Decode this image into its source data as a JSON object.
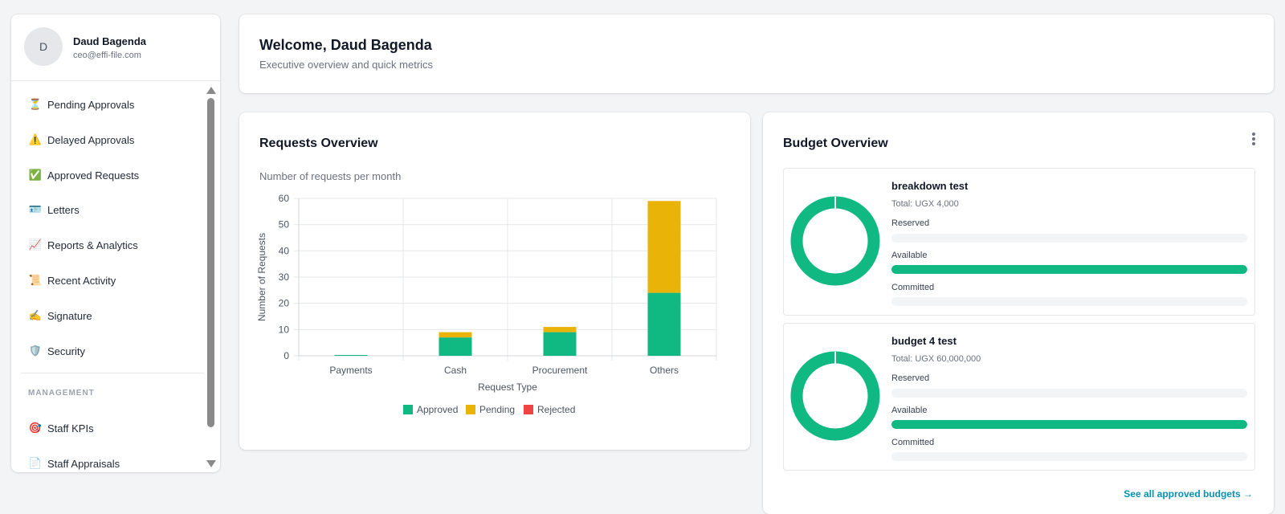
{
  "user": {
    "initial": "D",
    "name": "Daud Bagenda",
    "email": "ceo@effi-file.com"
  },
  "nav": {
    "items": [
      {
        "icon": "hourglass-icon",
        "glyph": "⏳",
        "label": "Pending Approvals"
      },
      {
        "icon": "warning-icon",
        "glyph": "⚠️",
        "label": "Delayed Approvals"
      },
      {
        "icon": "check-box-icon",
        "glyph": "✅",
        "label": "Approved Requests"
      },
      {
        "icon": "letter-icon",
        "glyph": "🪪",
        "label": "Letters"
      },
      {
        "icon": "chart-trend-icon",
        "glyph": "📈",
        "label": "Reports & Analytics"
      },
      {
        "icon": "scroll-icon",
        "glyph": "📜",
        "label": "Recent Activity"
      },
      {
        "icon": "writing-hand-icon",
        "glyph": "✍️",
        "label": "Signature"
      },
      {
        "icon": "shield-icon",
        "glyph": "🛡️",
        "label": "Security"
      }
    ],
    "section_label": "MANAGEMENT",
    "management_items": [
      {
        "icon": "target-icon",
        "glyph": "🎯",
        "label": "Staff KPIs"
      },
      {
        "icon": "clipboard-icon",
        "glyph": "📄",
        "label": "Staff Appraisals"
      }
    ]
  },
  "welcome": {
    "title": "Welcome, Daud Bagenda",
    "subtitle": "Executive overview and quick metrics"
  },
  "requests": {
    "title": "Requests Overview",
    "subtitle": "Number of requests per month"
  },
  "chart_data": {
    "type": "bar",
    "stacked": true,
    "categories": [
      "Payments",
      "Cash",
      "Procurement",
      "Others"
    ],
    "series": [
      {
        "name": "Approved",
        "color": "#10b981",
        "values": [
          0,
          7,
          9,
          24
        ]
      },
      {
        "name": "Pending",
        "color": "#eab308",
        "values": [
          0,
          2,
          2,
          35
        ]
      },
      {
        "name": "Rejected",
        "color": "#ef4444",
        "values": [
          0,
          0,
          0,
          0
        ]
      }
    ],
    "xlabel": "Request Type",
    "ylabel": "Number of Requests",
    "ylim": [
      0,
      60
    ],
    "yticks": [
      0,
      10,
      20,
      30,
      40,
      50,
      60
    ],
    "grid": true,
    "legend": "bottom"
  },
  "budget": {
    "title": "Budget Overview",
    "cards": [
      {
        "name": "breakdown test",
        "total": "Total: UGX 4,000",
        "reserved_label": "Reserved",
        "reserved": 0,
        "available_label": "Available",
        "available": 100,
        "committed_label": "Committed",
        "committed": 0,
        "color": "#10b981"
      },
      {
        "name": "budget 4 test",
        "total": "Total: UGX 60,000,000",
        "reserved_label": "Reserved",
        "reserved": 0,
        "available_label": "Available",
        "available": 100,
        "committed_label": "Committed",
        "committed": 0,
        "color": "#10b981"
      }
    ],
    "see_all": "See all approved budgets →"
  }
}
